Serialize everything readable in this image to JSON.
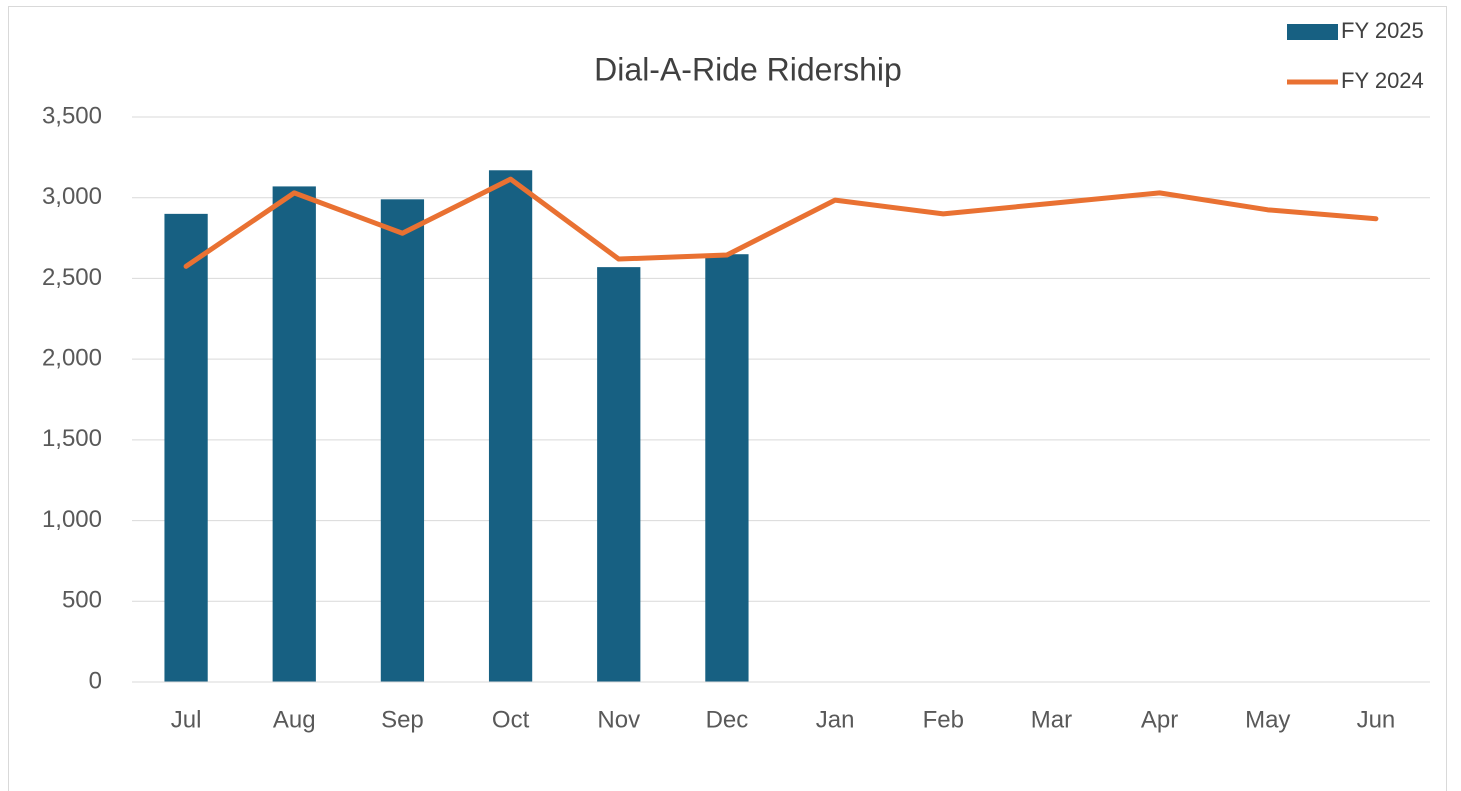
{
  "chart_data": {
    "type": "bar",
    "title": "Dial-A-Ride Ridership",
    "categories": [
      "Jul",
      "Aug",
      "Sep",
      "Oct",
      "Nov",
      "Dec",
      "Jan",
      "Feb",
      "Mar",
      "Apr",
      "May",
      "Jun"
    ],
    "series": [
      {
        "name": "FY 2025",
        "type": "bar",
        "color": "#176082",
        "values": [
          2900,
          3070,
          2990,
          3170,
          2570,
          2650,
          null,
          null,
          null,
          null,
          null,
          null
        ]
      },
      {
        "name": "FY 2024",
        "type": "line",
        "color": "#e97132",
        "values": [
          2575,
          3030,
          2780,
          3115,
          2620,
          2645,
          2985,
          2900,
          2965,
          3030,
          2925,
          2870
        ]
      }
    ],
    "ylim": [
      0,
      3500
    ],
    "yticks": [
      0,
      500,
      {
        "value": 1000,
        "label": "1,000"
      },
      {
        "value": 1500,
        "label": "1,500"
      },
      {
        "value": 2000,
        "label": "2,000"
      },
      {
        "value": 2500,
        "label": "2,500"
      },
      {
        "value": 3000,
        "label": "3,000"
      },
      {
        "value": 3500,
        "label": "3,500"
      }
    ],
    "grid": true,
    "legend": "top-right"
  }
}
